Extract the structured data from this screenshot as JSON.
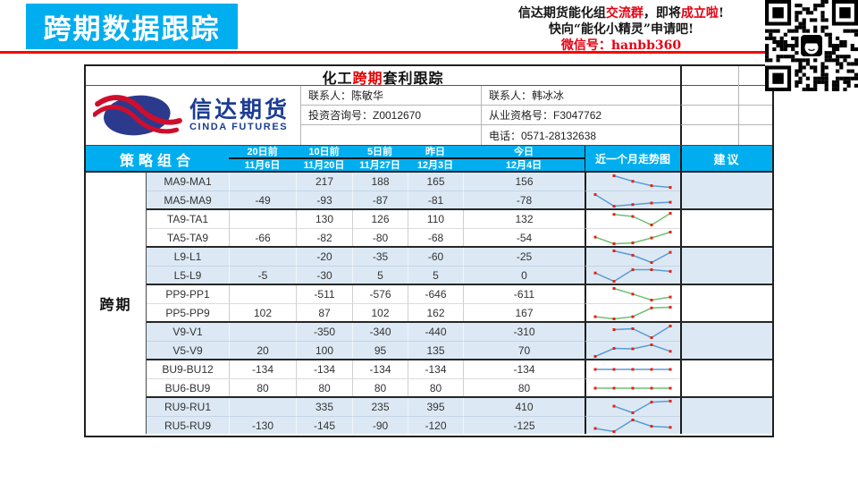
{
  "banner": {
    "title": "跨期数据跟踪"
  },
  "promo": {
    "line1": [
      {
        "t": "信达期货能化组",
        "red": false
      },
      {
        "t": "交流群",
        "red": true
      },
      {
        "t": "，即将",
        "red": false
      },
      {
        "t": "成立啦",
        "red": true
      },
      {
        "t": "!",
        "red": false
      }
    ],
    "line2": "快向“能化小精灵”申请吧!",
    "line3": "微信号：hanbb360"
  },
  "report": {
    "title": [
      {
        "t": "化工",
        "red": false
      },
      {
        "t": "跨期",
        "red": true
      },
      {
        "t": "套利跟踪",
        "red": false
      }
    ],
    "logo_cn": "信达期货",
    "logo_en": "CINDA FUTURES",
    "contact_left": [
      "联系人：陈敏华",
      "投资咨询号：Z0012670",
      ""
    ],
    "contact_right": [
      "联系人：韩冰冰",
      "从业资格号：F3047762",
      "电话：0571-28132638"
    ]
  },
  "table": {
    "strategy_header": "策略组合",
    "spark_header": "近一个月走势图",
    "suggestion_header": "建议",
    "group_label": "跨期",
    "columns": [
      {
        "label": "20日前",
        "date": "11月6日"
      },
      {
        "label": "10日前",
        "date": "11月20日"
      },
      {
        "label": "5日前",
        "date": "11月27日"
      },
      {
        "label": "昨日",
        "date": "12月3日"
      },
      {
        "label": "今日",
        "date": "12月4日"
      }
    ],
    "groups": [
      {
        "shade": "blue",
        "suggestion": "",
        "rows": [
          {
            "name": "MA9-MA1",
            "line": "blue",
            "values": [
              null,
              217,
              188,
              165,
              156
            ]
          },
          {
            "name": "MA5-MA9",
            "line": "blue",
            "values": [
              -49,
              -93,
              -87,
              -81,
              -78
            ]
          }
        ]
      },
      {
        "shade": "white",
        "suggestion": "",
        "rows": [
          {
            "name": "TA9-TA1",
            "line": "green",
            "values": [
              null,
              130,
              126,
              110,
              132
            ]
          },
          {
            "name": "TA5-TA9",
            "line": "green",
            "values": [
              -66,
              -82,
              -80,
              -68,
              -54
            ]
          }
        ]
      },
      {
        "shade": "blue",
        "suggestion": "",
        "rows": [
          {
            "name": "L9-L1",
            "line": "blue",
            "values": [
              null,
              -20,
              -35,
              -60,
              -25
            ]
          },
          {
            "name": "L5-L9",
            "line": "blue",
            "values": [
              -5,
              -30,
              5,
              5,
              0
            ]
          }
        ]
      },
      {
        "shade": "white",
        "suggestion": "",
        "rows": [
          {
            "name": "PP9-PP1",
            "line": "green",
            "values": [
              null,
              -511,
              -576,
              -646,
              -611
            ]
          },
          {
            "name": "PP5-PP9",
            "line": "green",
            "values": [
              102,
              87,
              102,
              162,
              167
            ]
          }
        ]
      },
      {
        "shade": "blue",
        "suggestion": "",
        "rows": [
          {
            "name": "V9-V1",
            "line": "blue",
            "values": [
              null,
              -350,
              -340,
              -440,
              -310
            ]
          },
          {
            "name": "V5-V9",
            "line": "blue",
            "values": [
              20,
              100,
              95,
              135,
              70
            ]
          }
        ]
      },
      {
        "shade": "white",
        "suggestion": "",
        "rows": [
          {
            "name": "BU9-BU12",
            "line": "blue",
            "values": [
              -134,
              -134,
              -134,
              -134,
              -134
            ]
          },
          {
            "name": "BU6-BU9",
            "line": "green",
            "values": [
              80,
              80,
              80,
              80,
              80
            ]
          }
        ]
      },
      {
        "shade": "blue",
        "suggestion": "",
        "rows": [
          {
            "name": "RU9-RU1",
            "line": "blue",
            "values": [
              null,
              335,
              235,
              395,
              410
            ]
          },
          {
            "name": "RU5-RU9",
            "line": "blue",
            "values": [
              -130,
              -145,
              -90,
              -120,
              -125
            ]
          }
        ]
      }
    ]
  },
  "colors": {
    "accent_blue": "#00AEEF",
    "row_light_blue": "#DCE9F5",
    "spark_blue": "#5B9BD5",
    "spark_green": "#6FBF73",
    "spark_marker_red": "#E8220E",
    "highlight_red": "#E60012",
    "logo_blue": "#1C3D94",
    "logo_red": "#CE0E2D",
    "divider_red": "#FF0000"
  }
}
